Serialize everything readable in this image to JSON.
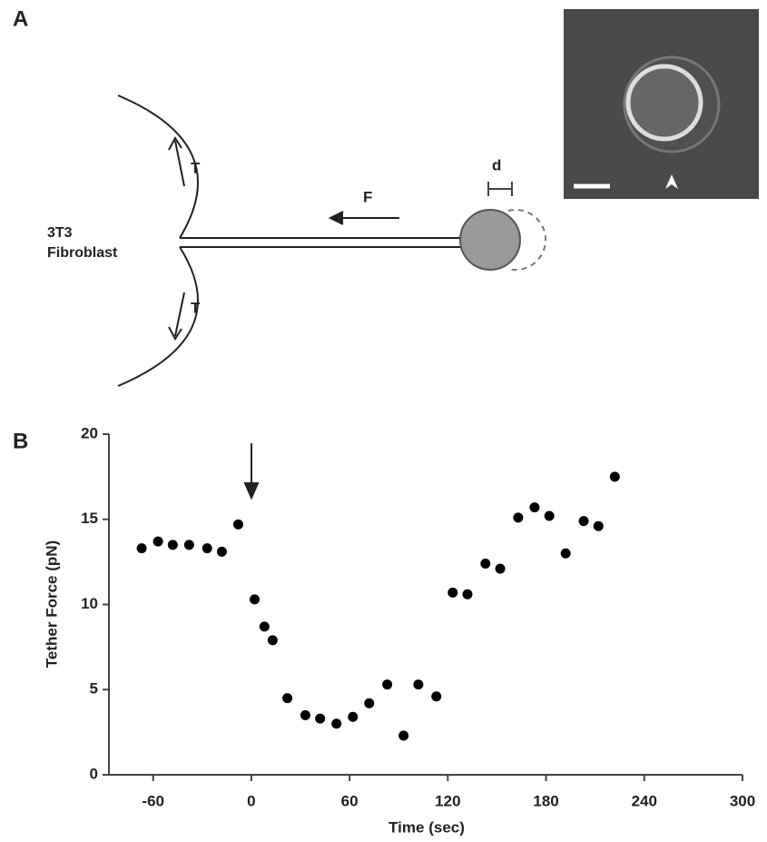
{
  "panels": {
    "a": {
      "label": "A",
      "cell_label": [
        "3T3",
        "Fibroblast"
      ],
      "tension_labels": [
        "T",
        "T"
      ],
      "force_label": "F",
      "displacement_label": "d"
    },
    "b": {
      "label": "B"
    }
  },
  "chart_data": {
    "type": "scatter",
    "x_label": "Time (sec)",
    "y_label": "Tether Force (pN)",
    "xlim": [
      -87,
      300
    ],
    "ylim": [
      0,
      20
    ],
    "xticks": [
      -60,
      0,
      60,
      120,
      180,
      240,
      300
    ],
    "yticks": [
      0,
      5,
      10,
      15,
      20
    ],
    "color": "#000000",
    "x": [
      -67,
      -57,
      -48,
      -38,
      -27,
      -18,
      -8,
      2,
      8,
      13,
      22,
      33,
      42,
      52,
      62,
      72,
      83,
      93,
      102,
      113,
      123,
      132,
      143,
      152,
      163,
      173,
      182,
      192,
      203,
      212,
      222
    ],
    "values": [
      13.3,
      13.7,
      13.5,
      13.5,
      13.3,
      13.1,
      14.7,
      10.3,
      8.7,
      7.9,
      4.5,
      3.5,
      3.3,
      3.0,
      3.4,
      4.2,
      5.3,
      2.3,
      5.3,
      4.6,
      10.7,
      10.6,
      12.4,
      12.1,
      15.1,
      15.7,
      15.2,
      13.0,
      14.9,
      14.6,
      17.5
    ]
  }
}
